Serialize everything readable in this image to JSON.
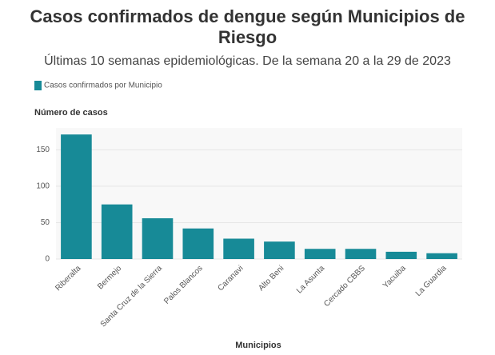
{
  "chart_data": {
    "type": "bar",
    "title": "Casos confirmados de dengue según Municipios de Riesgo",
    "subtitle": "Últimas 10 semanas epidemiológicas. De la semana 20 a la 29 de 2023",
    "y_label": "Número de casos",
    "x_label": "Municipios",
    "categories": [
      "Riberalta",
      "Bermejo",
      "Santa Cruz de la Sierra",
      "Palos Blancos",
      "Caranavi",
      "Alto Beni",
      "La Asunta",
      "Cercado CBBS",
      "Yacuiba",
      "La Guardia"
    ],
    "series": [
      {
        "name": "Casos confirmados por Municipio",
        "color": "#178a97",
        "values": [
          171,
          75,
          56,
          42,
          28,
          24,
          14,
          14,
          10,
          8
        ]
      }
    ],
    "ylim": [
      0,
      180
    ],
    "yticks": [
      0,
      50,
      100,
      150
    ],
    "grid": true
  }
}
